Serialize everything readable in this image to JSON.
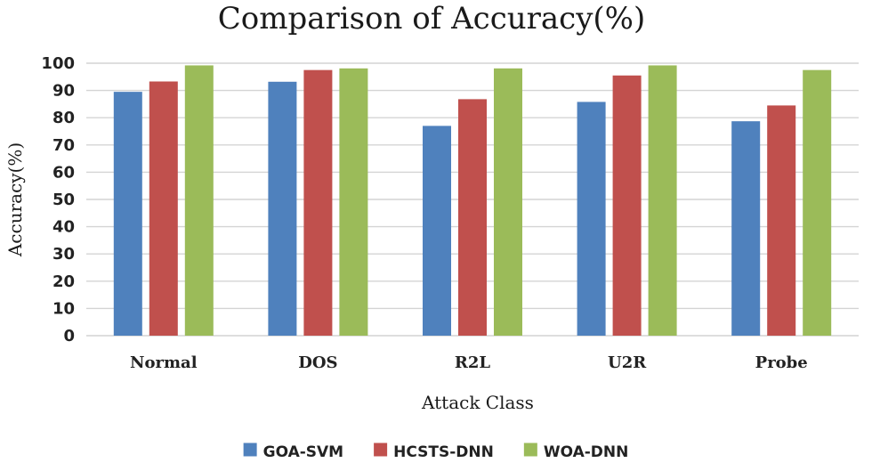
{
  "chart_data": {
    "type": "bar",
    "title": "Comparison of Accuracy(%)",
    "xlabel": "Attack Class",
    "ylabel": "Accuracy(%)",
    "ylim": [
      0,
      100
    ],
    "yticks": [
      0,
      10,
      20,
      30,
      40,
      50,
      60,
      70,
      80,
      90,
      100
    ],
    "grid": true,
    "legend_position": "bottom",
    "categories": [
      "Normal",
      "DOS",
      "R2L",
      "U2R",
      "Probe"
    ],
    "series": [
      {
        "name": "GOA-SVM",
        "color": "#4f81bd",
        "values": [
          89.5,
          93.2,
          77.0,
          85.8,
          78.7
        ]
      },
      {
        "name": "HCSTS-DNN",
        "color": "#c0504d",
        "values": [
          93.3,
          97.5,
          86.8,
          95.5,
          84.5
        ]
      },
      {
        "name": "WOA-DNN",
        "color": "#9bbb59",
        "values": [
          99.2,
          98.1,
          98.1,
          99.2,
          97.5
        ]
      }
    ]
  }
}
